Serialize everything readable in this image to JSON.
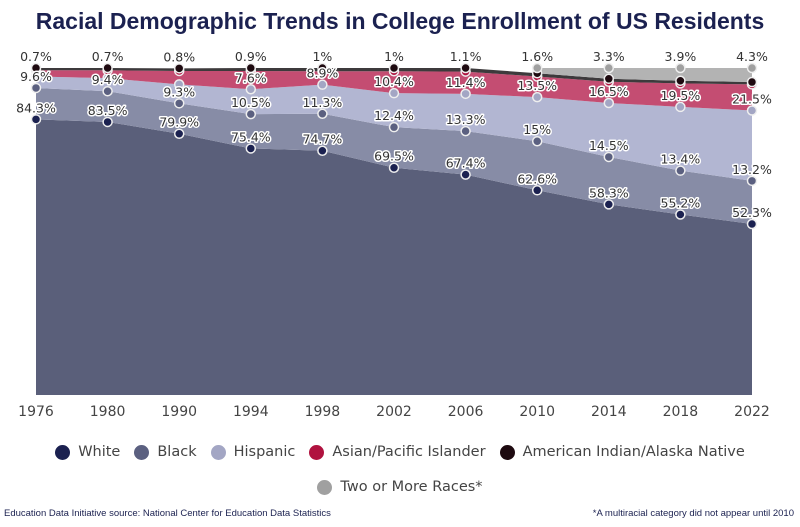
{
  "chart_data": {
    "type": "area",
    "stacked": true,
    "title": "Racial Demographic Trends in College Enrollment of US Residents",
    "categories": [
      "1976",
      "1980",
      "1990",
      "1994",
      "1998",
      "2002",
      "2006",
      "2010",
      "2014",
      "2018",
      "2022"
    ],
    "ylim": [
      0,
      100
    ],
    "grid": false,
    "legend_position": "bottom",
    "series": [
      {
        "name": "White",
        "area_color": "#5a5f7a",
        "marker_color": "#1b2150",
        "values": [
          84.3,
          83.5,
          79.9,
          75.4,
          74.7,
          69.5,
          67.4,
          62.6,
          58.3,
          55.2,
          52.3
        ],
        "labels": [
          "84.3%",
          "83.5%",
          "79.9%",
          "75.4%",
          "74.7%",
          "69.5%",
          "67.4%",
          "62.6%",
          "58.3%",
          "55.2%",
          "52.3%"
        ]
      },
      {
        "name": "Black",
        "area_color": "#878ca6",
        "marker_color": "#5b6080",
        "values": [
          9.6,
          9.4,
          9.3,
          10.5,
          11.3,
          12.4,
          13.3,
          15,
          14.5,
          13.4,
          13.2
        ],
        "labels": [
          "9.6%",
          "9.4%",
          "9.3%",
          "10.5%",
          "11.3%",
          "12.4%",
          "13.3%",
          "15%",
          "14.5%",
          "13.4%",
          "13.2%"
        ]
      },
      {
        "name": "Hispanic",
        "area_color": "#b2b6d2",
        "marker_color": "#a3a6c4",
        "values": [
          3.5,
          4.0,
          5.8,
          7.6,
          8.9,
          10.4,
          11.4,
          13.5,
          16.5,
          19.5,
          21.5
        ],
        "labels": [
          "",
          "",
          "",
          "7.6%",
          "8.9%",
          "10.4%",
          "11.4%",
          "13.5%",
          "16.5%",
          "19.5%",
          "21.5%"
        ]
      },
      {
        "name": "Asian/Pacific Islander",
        "area_color": "#c44d72",
        "marker_color": "#b0123f",
        "values": [
          1.9,
          2.4,
          4.1,
          5.6,
          4.1,
          6.7,
          6.8,
          6.3,
          6.5,
          7.2,
          8.0
        ],
        "labels": [
          "",
          "",
          "",
          "",
          "",
          "",
          "",
          "",
          "",
          "",
          ""
        ]
      },
      {
        "name": "American Indian/Alaska Native",
        "area_color": "#3d3a3c",
        "marker_color": "#1e0a10",
        "values": [
          0.7,
          0.7,
          0.8,
          0.9,
          1,
          1,
          1.1,
          1.0,
          0.9,
          0.8,
          0.7
        ],
        "labels": [
          "0.7%",
          "0.7%",
          "0.8%",
          "0.9%",
          "1%",
          "1%",
          "1.1%",
          "",
          "",
          "",
          ""
        ]
      },
      {
        "name": "Two or More Races*",
        "area_color": "#b3b3b3",
        "marker_color": "#a0a0a0",
        "values": [
          null,
          null,
          null,
          null,
          null,
          null,
          null,
          1.6,
          3.3,
          3.9,
          4.3
        ],
        "labels": [
          "",
          "",
          "",
          "",
          "",
          "",
          "",
          "1.6%",
          "3.3%",
          "3.9%",
          "4.3%"
        ]
      }
    ]
  },
  "footer": {
    "source": "Education Data Initiative source: National Center for Education Data Statistics",
    "note": "*A multiracial category did not appear until 2010"
  }
}
